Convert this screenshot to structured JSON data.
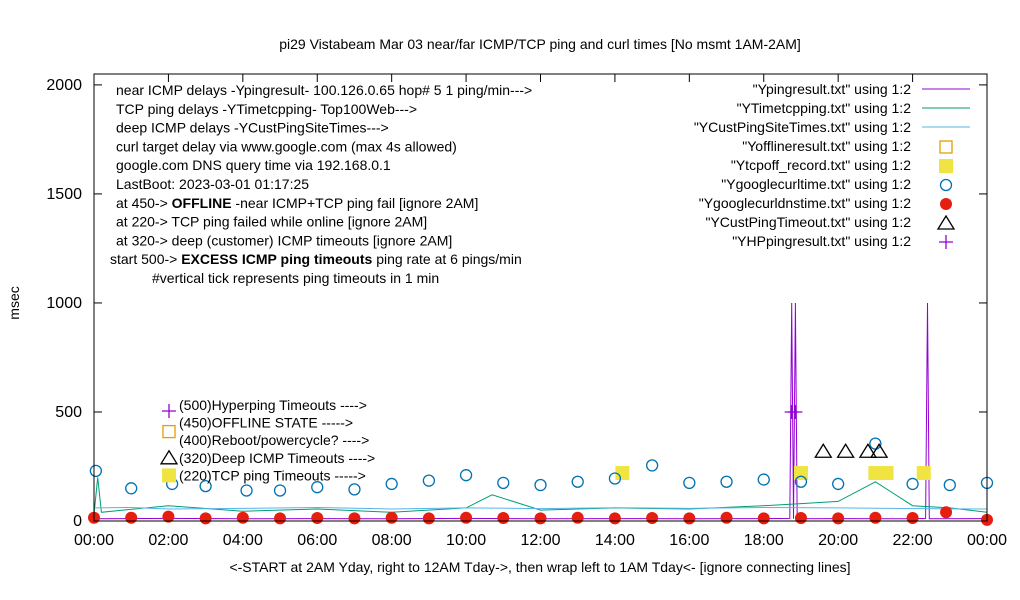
{
  "chart_data": {
    "type": "line",
    "title": "pi29 Vistabeam Mar 03  near/far ICMP/TCP ping and curl times [No msmt 1AM-2AM]",
    "xlabel": "<-START at 2AM Yday, right to 12AM Tday->, then wrap left to 1AM Tday<- [ignore connecting lines]",
    "ylabel": "msec",
    "ylim": [
      0,
      2050
    ],
    "xlim": [
      0,
      24
    ],
    "y_ticks": [
      "0",
      "500",
      "1000",
      "1500",
      "2000"
    ],
    "x_ticks": [
      "00:00",
      "02:00",
      "04:00",
      "06:00",
      "08:00",
      "10:00",
      "12:00",
      "14:00",
      "16:00",
      "18:00",
      "20:00",
      "22:00",
      "00:00"
    ],
    "legend_position": "top-right",
    "info_lines": [
      "near ICMP delays -Ypingresult- 100.126.0.65 hop# 5 1 ping/min--->",
      "TCP ping delays -YTimetcpping- Top100Web--->",
      "deep ICMP delays -YCustPingSiteTimes--->",
      "curl target delay via www.google.com (max 4s allowed)",
      "google.com DNS query time via 192.168.0.1",
      "LastBoot: 2023-03-01 01:17:25"
    ],
    "offline_line": {
      "prefix": "at 450-> ",
      "bold": "OFFLINE",
      "suffix": " -near ICMP+TCP ping fail [ignore 2AM]"
    },
    "info_lines_2": [
      "at 220-> TCP ping failed while online [ignore 2AM]",
      "at 320-> deep (customer) ICMP timeouts [ignore 2AM]"
    ],
    "excess_line": {
      "prefix": "start 500-> ",
      "bold": "EXCESS ICMP ping timeouts",
      "suffix": " ping rate at 6 pings/min"
    },
    "tick_note": "#vertical tick represents ping timeouts in 1 min",
    "key_labels": [
      "(500)Hyperping Timeouts ---->",
      "(450)OFFLINE STATE ----->",
      "(400)Reboot/powercycle? ---->",
      "(320)Deep ICMP Timeouts ---->",
      "(220)TCP ping Timeouts ----->"
    ],
    "series": [
      {
        "name": "\"Ypingresult.txt\" using 1:2",
        "style": "line",
        "color": "#9400d3",
        "points": [
          [
            0,
            10
          ],
          [
            2,
            12
          ],
          [
            4,
            10
          ],
          [
            6,
            11
          ],
          [
            8,
            10
          ],
          [
            10,
            12
          ],
          [
            12,
            10
          ],
          [
            14,
            11
          ],
          [
            16,
            10
          ],
          [
            18,
            11
          ],
          [
            18.7,
            12
          ],
          [
            18.75,
            1000
          ],
          [
            18.8,
            10
          ],
          [
            18.85,
            1000
          ],
          [
            18.9,
            10
          ],
          [
            20,
            11
          ],
          [
            22,
            10
          ],
          [
            22.35,
            12
          ],
          [
            22.4,
            1000
          ],
          [
            22.45,
            10
          ],
          [
            24,
            11
          ]
        ]
      },
      {
        "name": "\"YTimetcpping.txt\" using 1:2",
        "style": "line",
        "color": "#009e73",
        "points": [
          [
            0,
            30
          ],
          [
            0.1,
            200
          ],
          [
            0.2,
            40
          ],
          [
            2,
            70
          ],
          [
            4,
            45
          ],
          [
            6,
            55
          ],
          [
            8,
            40
          ],
          [
            10,
            60
          ],
          [
            10.7,
            120
          ],
          [
            12,
            50
          ],
          [
            14,
            60
          ],
          [
            16,
            55
          ],
          [
            18,
            70
          ],
          [
            19,
            80
          ],
          [
            20,
            90
          ],
          [
            21,
            180
          ],
          [
            22,
            70
          ],
          [
            23,
            60
          ],
          [
            24,
            40
          ]
        ]
      },
      {
        "name": "\"YCustPingSiteTimes.txt\" using 1:2",
        "style": "line",
        "color": "#56b4e9",
        "points": [
          [
            0,
            60
          ],
          [
            1,
            62
          ],
          [
            2,
            55
          ],
          [
            4,
            58
          ],
          [
            6,
            62
          ],
          [
            8,
            55
          ],
          [
            10,
            60
          ],
          [
            12,
            57
          ],
          [
            14,
            61
          ],
          [
            16,
            58
          ],
          [
            18,
            62
          ],
          [
            20,
            60
          ],
          [
            22,
            57
          ],
          [
            24,
            55
          ]
        ]
      },
      {
        "name": "\"Yofflineresult.txt\" using 1:2",
        "style": "open-square",
        "color": "#e69f00",
        "points": []
      },
      {
        "name": "\"Ytcpoff_record.txt\" using 1:2",
        "style": "filled-square",
        "color": "#f0e442",
        "points": [
          [
            14.2,
            220
          ],
          [
            19,
            220
          ],
          [
            21,
            220
          ],
          [
            21.3,
            220
          ],
          [
            22.3,
            220
          ]
        ]
      },
      {
        "name": "\"Ygooglecurltime.txt\" using 1:2",
        "style": "open-circle",
        "color": "#0072b2",
        "points": [
          [
            0.05,
            230
          ],
          [
            1,
            150
          ],
          [
            2.1,
            170
          ],
          [
            3,
            160
          ],
          [
            4.1,
            140
          ],
          [
            5,
            140
          ],
          [
            6,
            155
          ],
          [
            7,
            145
          ],
          [
            8,
            170
          ],
          [
            9,
            185
          ],
          [
            10,
            210
          ],
          [
            11,
            175
          ],
          [
            12,
            165
          ],
          [
            13,
            180
          ],
          [
            14,
            195
          ],
          [
            15,
            255
          ],
          [
            16,
            175
          ],
          [
            17,
            180
          ],
          [
            18,
            190
          ],
          [
            19,
            180
          ],
          [
            20,
            170
          ],
          [
            21,
            355
          ],
          [
            22,
            170
          ],
          [
            23,
            165
          ],
          [
            24,
            175
          ]
        ]
      },
      {
        "name": "\"Ygooglecurldnstime.txt\" using 1:2",
        "style": "filled-circle",
        "color": "#e51e10",
        "points": [
          [
            0,
            15
          ],
          [
            1,
            15
          ],
          [
            2,
            20
          ],
          [
            3,
            12
          ],
          [
            4,
            15
          ],
          [
            5,
            12
          ],
          [
            6,
            14
          ],
          [
            7,
            12
          ],
          [
            8,
            15
          ],
          [
            9,
            12
          ],
          [
            10,
            15
          ],
          [
            11,
            14
          ],
          [
            12,
            12
          ],
          [
            13,
            15
          ],
          [
            14,
            12
          ],
          [
            15,
            14
          ],
          [
            16,
            12
          ],
          [
            17,
            15
          ],
          [
            18,
            12
          ],
          [
            19,
            14
          ],
          [
            20,
            12
          ],
          [
            21,
            15
          ],
          [
            22,
            14
          ],
          [
            22.9,
            40
          ],
          [
            24,
            5
          ]
        ]
      },
      {
        "name": "\"YCustPingTimeout.txt\" using 1:2",
        "style": "open-triangle",
        "color": "#000000",
        "points": [
          [
            19.6,
            320
          ],
          [
            20.2,
            320
          ],
          [
            20.8,
            320
          ],
          [
            21.1,
            320
          ]
        ]
      },
      {
        "name": "\"YHPpingresult.txt\" using 1:2",
        "style": "plus",
        "color": "#9400d3",
        "points": [
          [
            18.75,
            500
          ],
          [
            18.85,
            500
          ]
        ]
      }
    ]
  }
}
